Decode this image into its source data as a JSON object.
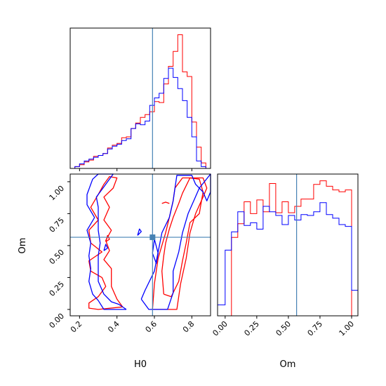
{
  "chart_data": {
    "type": "corner",
    "parameters": [
      "H0",
      "Om"
    ],
    "truths": {
      "H0": 0.59,
      "Om": 0.565
    },
    "colors": {
      "series_a": "#ff0000",
      "series_b": "#0000ff",
      "truth": "#4682b4"
    },
    "panels": [
      {
        "id": "hist_H0",
        "type": "histogram",
        "xlim": [
          0.15,
          0.9
        ],
        "xticks": [
          0.2,
          0.4,
          0.6,
          0.8
        ],
        "xtick_labels_shown": false,
        "bin_edges": [
          0.15,
          0.175,
          0.2,
          0.225,
          0.25,
          0.275,
          0.3,
          0.325,
          0.35,
          0.375,
          0.4,
          0.425,
          0.45,
          0.475,
          0.5,
          0.525,
          0.55,
          0.575,
          0.6,
          0.625,
          0.65,
          0.675,
          0.7,
          0.725,
          0.75,
          0.775,
          0.8,
          0.825,
          0.85,
          0.875,
          0.9
        ],
        "series": [
          {
            "color": "#ff0000",
            "counts": [
              0,
              2,
              4,
              7,
              9,
              13,
              14,
              16,
              22,
              25,
              27,
              33,
              34,
              43,
              49,
              55,
              58,
              61,
              72,
              71,
              91,
              110,
              126,
              144,
              104,
              99,
              50,
              23,
              6,
              0
            ]
          },
          {
            "color": "#0000ff",
            "counts": [
              0,
              2,
              5,
              8,
              10,
              12,
              14,
              16,
              21,
              24,
              26,
              30,
              32,
              43,
              48,
              47,
              51,
              68,
              76,
              81,
              97,
              108,
              98,
              86,
              73,
              55,
              34,
              8,
              2,
              0
            ]
          }
        ]
      },
      {
        "id": "joint_H0_Om",
        "type": "contour",
        "xlim": [
          0.15,
          0.9
        ],
        "ylim": [
          -0.05,
          1.06
        ],
        "xticks": [
          0.2,
          0.4,
          0.6,
          0.8
        ],
        "xtick_labels": [
          "0.2",
          "0.4",
          "0.6",
          "0.8"
        ],
        "yticks": [
          0.0,
          0.25,
          0.5,
          0.75,
          1.0
        ],
        "ytick_labels": [
          "0.00",
          "0.25",
          "0.50",
          "0.75",
          "1.00"
        ],
        "xlabel": "H0",
        "ylabel": "Om",
        "contours": [
          {
            "color": "#ff0000",
            "points": [
              [
                0.43,
                0.02
              ],
              [
                0.3,
                0.0
              ],
              [
                0.25,
                0.01
              ],
              [
                0.25,
                0.05
              ],
              [
                0.3,
                0.1
              ],
              [
                0.34,
                0.18
              ],
              [
                0.32,
                0.25
              ],
              [
                0.26,
                0.3
              ],
              [
                0.25,
                0.38
              ],
              [
                0.32,
                0.45
              ],
              [
                0.26,
                0.52
              ],
              [
                0.25,
                0.62
              ],
              [
                0.3,
                0.7
              ],
              [
                0.26,
                0.8
              ],
              [
                0.3,
                0.9
              ],
              [
                0.33,
                0.98
              ],
              [
                0.36,
                1.04
              ],
              [
                0.4,
                1.03
              ],
              [
                0.38,
                0.95
              ],
              [
                0.33,
                0.88
              ],
              [
                0.36,
                0.8
              ],
              [
                0.33,
                0.7
              ],
              [
                0.37,
                0.62
              ],
              [
                0.34,
                0.54
              ],
              [
                0.36,
                0.46
              ],
              [
                0.33,
                0.39
              ],
              [
                0.37,
                0.32
              ],
              [
                0.37,
                0.18
              ],
              [
                0.4,
                0.08
              ],
              [
                0.43,
                0.02
              ]
            ]
          },
          {
            "color": "#ff0000",
            "points": [
              [
                0.59,
                0.0
              ],
              [
                0.72,
                0.0
              ],
              [
                0.74,
                0.2
              ],
              [
                0.77,
                0.4
              ],
              [
                0.79,
                0.6
              ],
              [
                0.82,
                0.75
              ],
              [
                0.86,
                0.88
              ],
              [
                0.88,
                0.95
              ],
              [
                0.86,
                1.03
              ],
              [
                0.75,
                1.03
              ],
              [
                0.71,
                0.95
              ],
              [
                0.7,
                0.85
              ],
              [
                0.68,
                0.72
              ],
              [
                0.66,
                0.6
              ],
              [
                0.62,
                0.4
              ],
              [
                0.6,
                0.2
              ],
              [
                0.59,
                0.0
              ]
            ]
          },
          {
            "color": "#ff0000",
            "points": [
              [
                0.65,
                0.12
              ],
              [
                0.64,
                0.3
              ],
              [
                0.65,
                0.42
              ],
              [
                0.66,
                0.52
              ],
              [
                0.68,
                0.63
              ],
              [
                0.7,
                0.72
              ],
              [
                0.73,
                0.83
              ],
              [
                0.75,
                0.91
              ],
              [
                0.79,
                1.03
              ],
              [
                0.84,
                1.02
              ],
              [
                0.86,
                0.92
              ],
              [
                0.84,
                0.75
              ],
              [
                0.79,
                0.68
              ],
              [
                0.77,
                0.52
              ],
              [
                0.75,
                0.38
              ],
              [
                0.73,
                0.22
              ],
              [
                0.69,
                0.1
              ],
              [
                0.65,
                0.12
              ]
            ]
          },
          {
            "color": "#0000ff",
            "points": [
              [
                0.45,
                0.0
              ],
              [
                0.33,
                0.0
              ],
              [
                0.3,
                0.07
              ],
              [
                0.27,
                0.12
              ],
              [
                0.25,
                0.22
              ],
              [
                0.26,
                0.32
              ],
              [
                0.25,
                0.42
              ],
              [
                0.26,
                0.52
              ],
              [
                0.24,
                0.62
              ],
              [
                0.28,
                0.72
              ],
              [
                0.24,
                0.82
              ],
              [
                0.24,
                0.9
              ],
              [
                0.27,
                1.02
              ],
              [
                0.3,
                1.06
              ],
              [
                0.38,
                1.06
              ],
              [
                0.33,
                0.96
              ],
              [
                0.29,
                0.88
              ],
              [
                0.3,
                0.8
              ],
              [
                0.3,
                0.72
              ],
              [
                0.3,
                0.62
              ],
              [
                0.31,
                0.52
              ],
              [
                0.3,
                0.42
              ],
              [
                0.3,
                0.32
              ],
              [
                0.3,
                0.22
              ],
              [
                0.33,
                0.12
              ],
              [
                0.37,
                0.06
              ],
              [
                0.41,
                0.04
              ],
              [
                0.45,
                0.0
              ]
            ]
          },
          {
            "color": "#0000ff",
            "points": [
              [
                0.53,
                0.08
              ],
              [
                0.57,
                0.0
              ],
              [
                0.67,
                0.0
              ],
              [
                0.7,
                0.13
              ],
              [
                0.7,
                0.3
              ],
              [
                0.73,
                0.45
              ],
              [
                0.75,
                0.6
              ],
              [
                0.78,
                0.75
              ],
              [
                0.81,
                0.85
              ],
              [
                0.84,
                0.95
              ],
              [
                0.9,
                1.06
              ],
              [
                0.9,
                0.92
              ],
              [
                0.88,
                0.85
              ],
              [
                0.86,
                0.92
              ],
              [
                0.82,
                0.98
              ],
              [
                0.8,
                1.05
              ],
              [
                0.72,
                1.05
              ],
              [
                0.71,
                0.95
              ],
              [
                0.7,
                0.85
              ],
              [
                0.68,
                0.72
              ],
              [
                0.64,
                0.6
              ],
              [
                0.62,
                0.45
              ],
              [
                0.6,
                0.3
              ],
              [
                0.55,
                0.15
              ],
              [
                0.53,
                0.08
              ]
            ]
          },
          {
            "color": "#0000ff",
            "points": [
              [
                0.6,
                0.55
              ],
              [
                0.59,
                0.44
              ],
              [
                0.61,
                0.36
              ],
              [
                0.62,
                0.44
              ],
              [
                0.6,
                0.55
              ]
            ]
          },
          {
            "color": "#0000ff",
            "points": [
              [
                0.51,
                0.58
              ],
              [
                0.53,
                0.61
              ],
              [
                0.52,
                0.63
              ],
              [
                0.51,
                0.58
              ]
            ]
          },
          {
            "color": "#0000ff",
            "points": [
              [
                0.33,
                0.46
              ],
              [
                0.35,
                0.48
              ],
              [
                0.34,
                0.51
              ],
              [
                0.33,
                0.46
              ]
            ]
          },
          {
            "color": "#ff0000",
            "points": [
              [
                0.34,
                0.53
              ],
              [
                0.36,
                0.55
              ],
              [
                0.35,
                0.58
              ],
              [
                0.34,
                0.53
              ]
            ]
          },
          {
            "color": "#ff0000",
            "points": [
              [
                0.64,
                0.83
              ],
              [
                0.66,
                0.84
              ],
              [
                0.68,
                0.83
              ]
            ]
          }
        ]
      },
      {
        "id": "hist_Om",
        "type": "histogram",
        "xlim": [
          -0.06,
          1.05
        ],
        "xticks": [
          0.0,
          0.25,
          0.5,
          0.75,
          1.0
        ],
        "xtick_labels": [
          "0.00",
          "0.25",
          "0.50",
          "0.75",
          "1.00"
        ],
        "xlabel": "Om",
        "bin_edges": [
          -0.06,
          0.0,
          0.05,
          0.1,
          0.15,
          0.2,
          0.25,
          0.3,
          0.35,
          0.4,
          0.45,
          0.5,
          0.55,
          0.6,
          0.65,
          0.7,
          0.75,
          0.8,
          0.85,
          0.9,
          0.95,
          1.0,
          1.05
        ],
        "series": [
          {
            "color": "#ff0000",
            "counts": [
              0,
              0,
              86,
              101,
              125,
              112,
              127,
              114,
              145,
              113,
              125,
              113,
              120,
              128,
              128,
              144,
              148,
              142,
              138,
              136,
              138,
              0
            ]
          },
          {
            "color": "#0000ff",
            "counts": [
              12,
              72,
              92,
              114,
              99,
              102,
              95,
              120,
              114,
              110,
              100,
              110,
              105,
              111,
              110,
              114,
              124,
              111,
              107,
              100,
              98,
              28
            ]
          }
        ]
      }
    ]
  }
}
